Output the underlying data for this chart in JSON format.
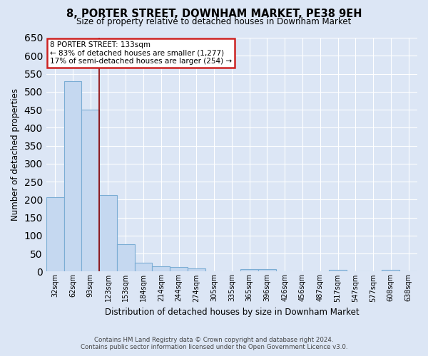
{
  "title": "8, PORTER STREET, DOWNHAM MARKET, PE38 9EH",
  "subtitle": "Size of property relative to detached houses in Downham Market",
  "xlabel": "Distribution of detached houses by size in Downham Market",
  "ylabel": "Number of detached properties",
  "footer_line1": "Contains HM Land Registry data © Crown copyright and database right 2024.",
  "footer_line2": "Contains public sector information licensed under the Open Government Licence v3.0.",
  "categories": [
    "32sqm",
    "62sqm",
    "93sqm",
    "123sqm",
    "153sqm",
    "184sqm",
    "214sqm",
    "244sqm",
    "274sqm",
    "305sqm",
    "335sqm",
    "365sqm",
    "396sqm",
    "426sqm",
    "456sqm",
    "487sqm",
    "517sqm",
    "547sqm",
    "577sqm",
    "608sqm",
    "638sqm"
  ],
  "values": [
    207,
    530,
    450,
    213,
    75,
    25,
    15,
    12,
    8,
    0,
    0,
    7,
    6,
    0,
    0,
    0,
    4,
    0,
    0,
    4,
    0
  ],
  "bar_color": "#c5d8f0",
  "bar_edge_color": "#7badd4",
  "bg_color": "#dce6f5",
  "grid_color": "#ffffff",
  "vline_color": "#8b0000",
  "annotation_text": "8 PORTER STREET: 133sqm\n← 83% of detached houses are smaller (1,277)\n17% of semi-detached houses are larger (254) →",
  "ylim": [
    0,
    650
  ],
  "yticks": [
    0,
    50,
    100,
    150,
    200,
    250,
    300,
    350,
    400,
    450,
    500,
    550,
    600,
    650
  ]
}
